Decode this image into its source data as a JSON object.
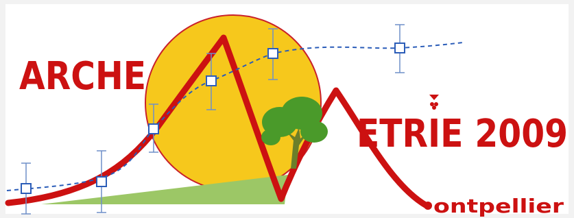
{
  "logo": {
    "left_text": "ARCHE",
    "right_text": "ETRIE 2009",
    "city_text": "ontpellier"
  }
}
